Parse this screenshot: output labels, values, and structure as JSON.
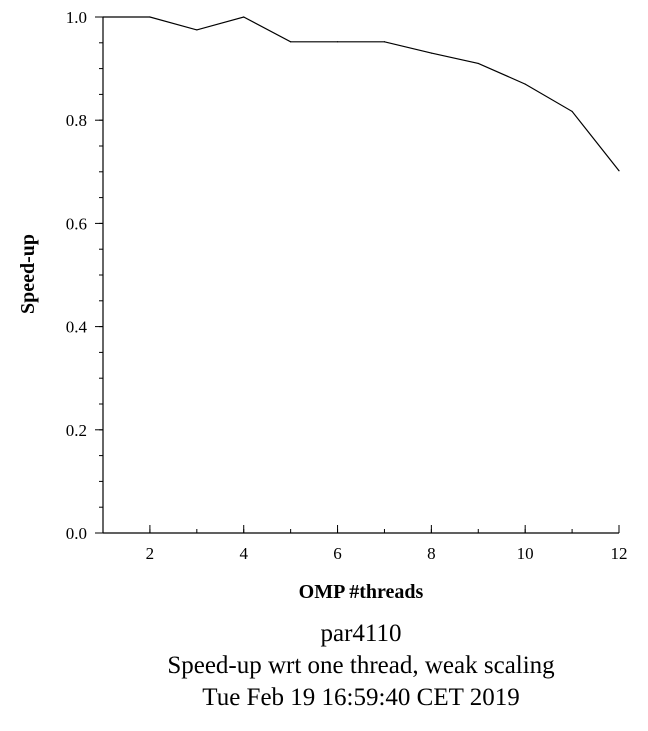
{
  "chart_data": {
    "type": "line",
    "xlabel": "OMP #threads",
    "ylabel": "Speed-up",
    "xlim": [
      1,
      12
    ],
    "ylim": [
      0.0,
      1.0
    ],
    "x_ticks": [
      "2",
      "4",
      "6",
      "8",
      "10",
      "12"
    ],
    "y_ticks": [
      "0.0",
      "0.2",
      "0.4",
      "0.6",
      "0.8",
      "1.0"
    ],
    "x_tick_values": [
      2,
      4,
      6,
      8,
      10,
      12
    ],
    "y_tick_values": [
      0.0,
      0.2,
      0.4,
      0.6,
      0.8,
      1.0
    ],
    "x_minor_step": 1,
    "y_minor_step": 0.05,
    "series": [
      {
        "x": [
          1,
          2,
          3,
          4,
          5,
          6,
          7,
          8,
          9,
          10,
          11,
          12
        ],
        "y": [
          1.0,
          1.0,
          0.975,
          1.0,
          0.952,
          0.952,
          0.952,
          0.93,
          0.91,
          0.87,
          0.817,
          0.702
        ]
      }
    ],
    "grid": false,
    "line_color": "#000000"
  },
  "captions": [
    "par4110",
    "Speed-up wrt one thread, weak scaling",
    "Tue Feb 19 16:59:40 CET 2019"
  ]
}
